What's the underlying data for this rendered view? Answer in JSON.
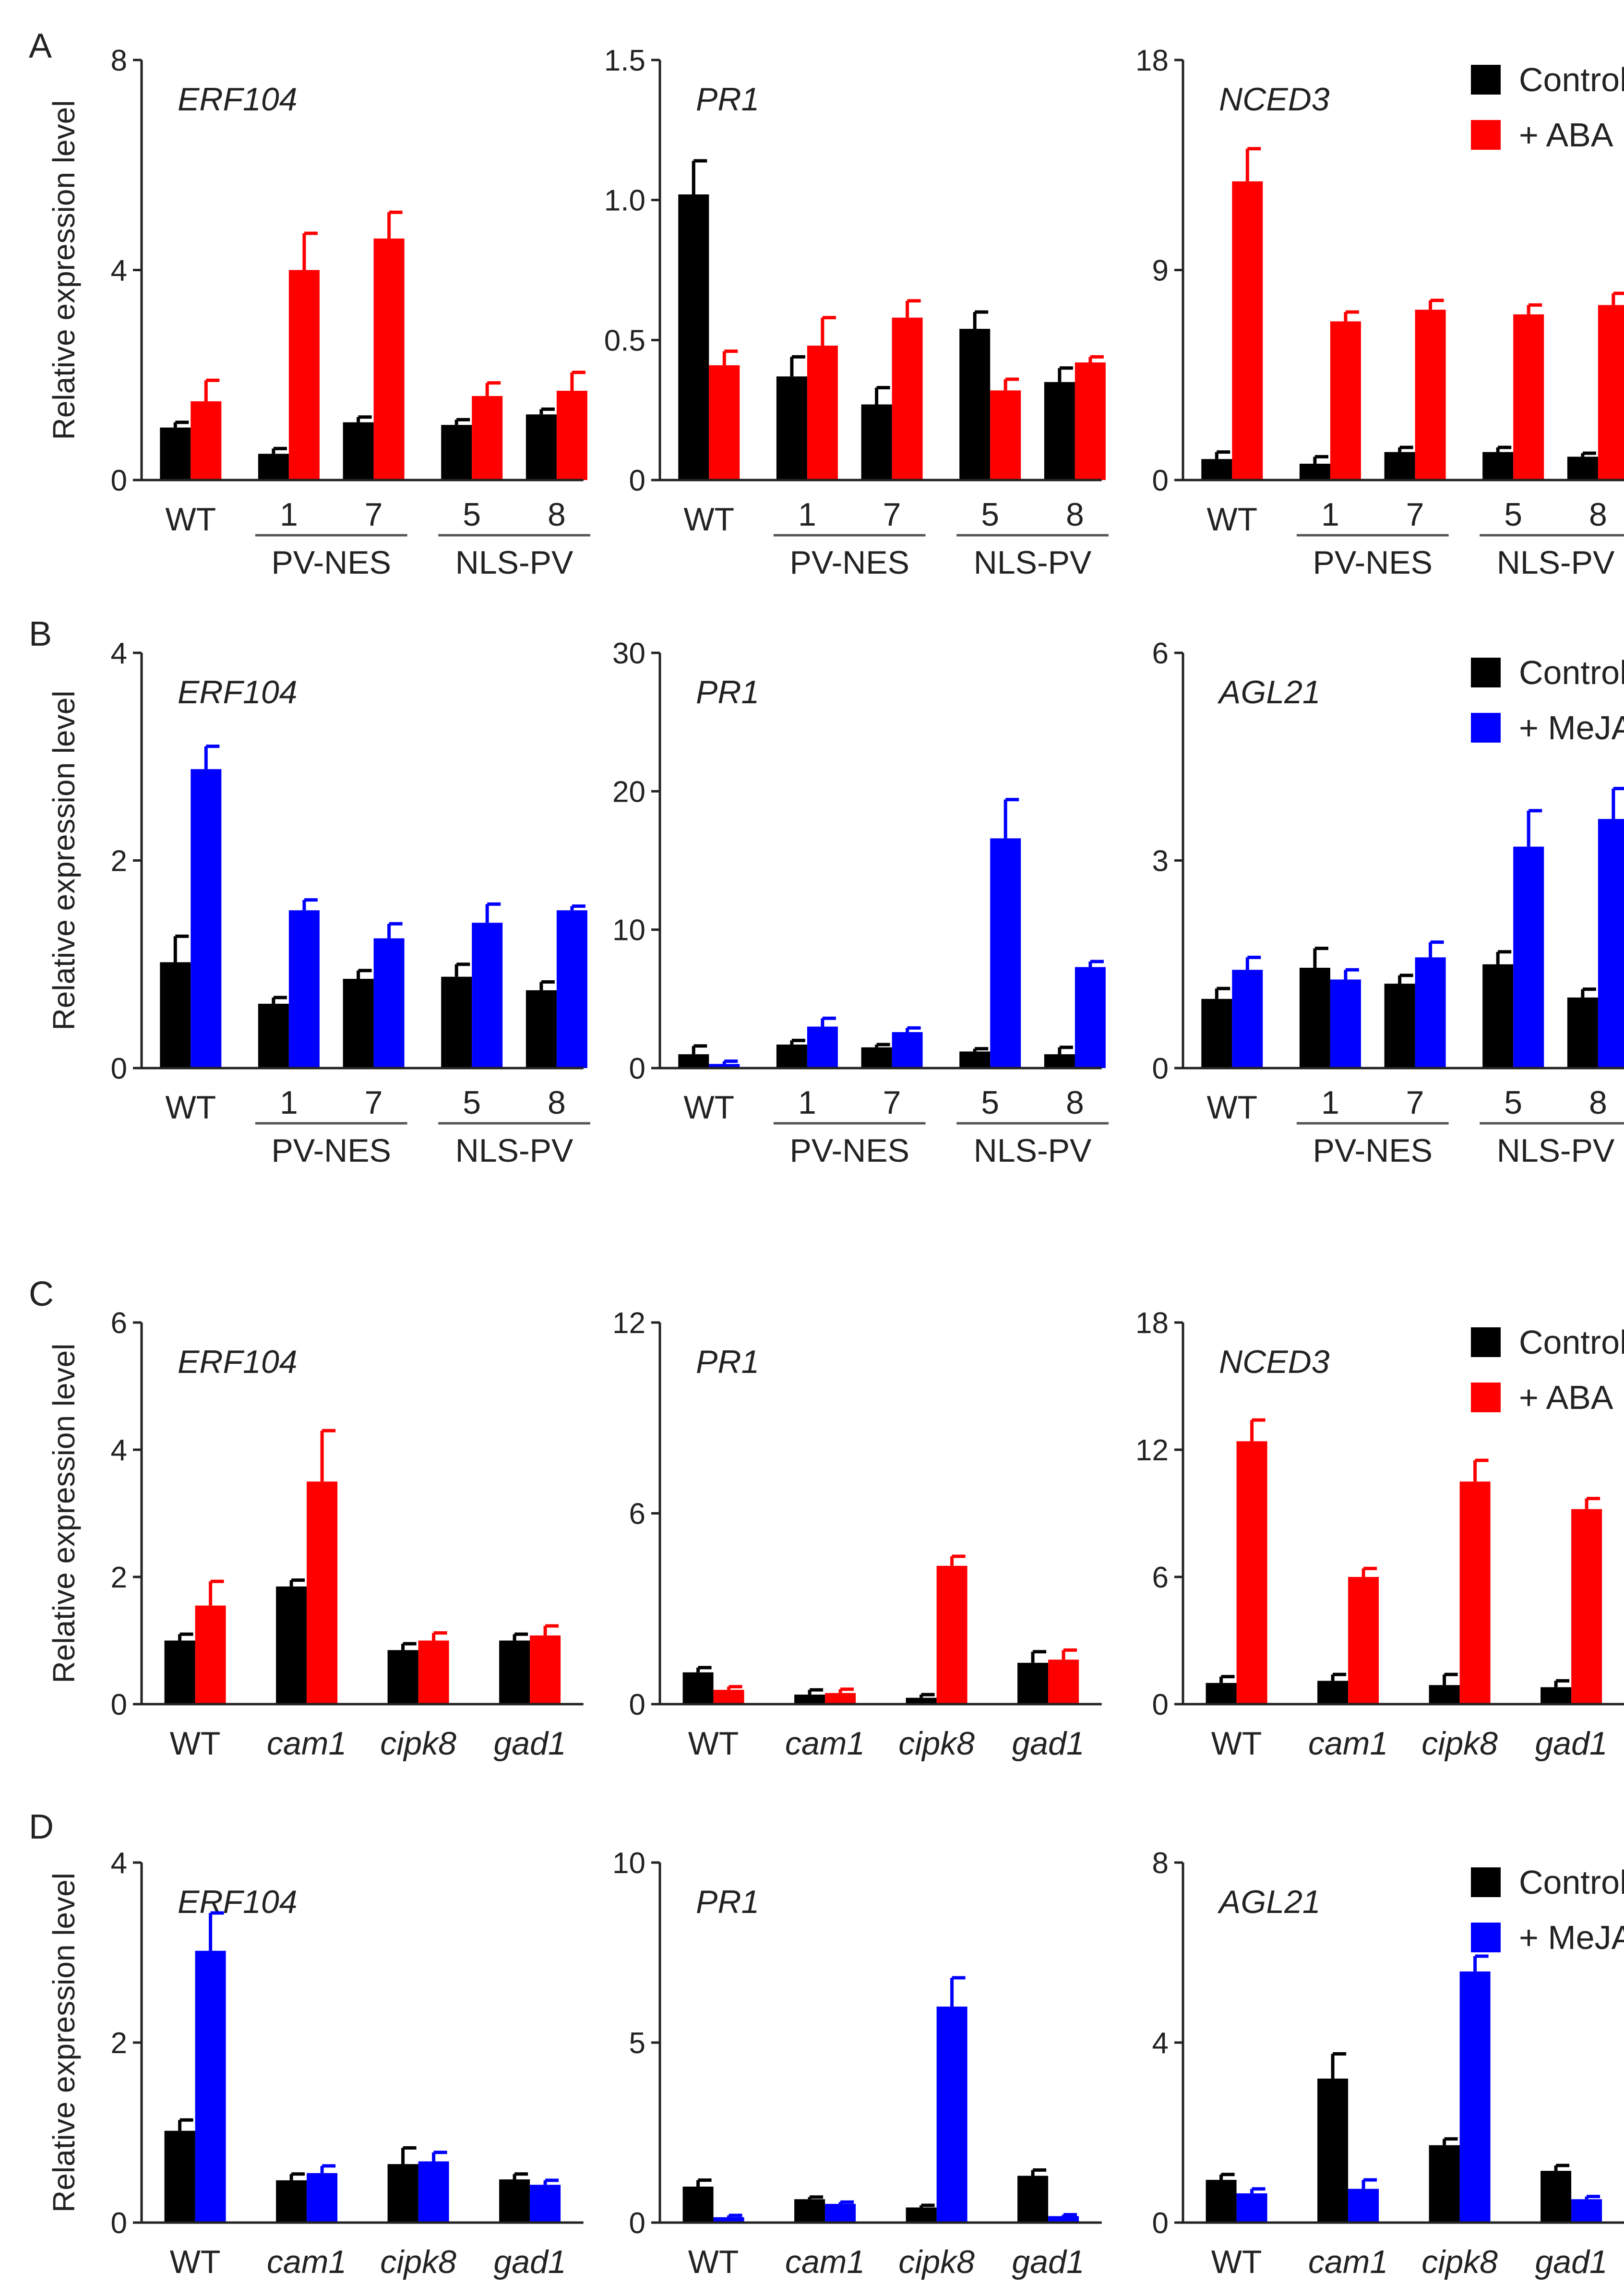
{
  "y_axis_label": "Relative expression level",
  "colors": {
    "control": "#000000",
    "aba": "#ff0000",
    "meja": "#0000ff",
    "axis": "#222222"
  },
  "chart_data": [
    {
      "panel": "A",
      "type": "bar",
      "gene": "ERF104",
      "treatment": "aba",
      "ylim": [
        0,
        8
      ],
      "yticks": [
        "0",
        "4",
        "8"
      ],
      "groups": [
        {
          "label": "WT",
          "tick": ""
        },
        {
          "label": "",
          "tick": "1"
        },
        {
          "label": "",
          "tick": "7"
        },
        {
          "label": "",
          "tick": "5"
        },
        {
          "label": "",
          "tick": "8"
        }
      ],
      "brackets": [
        "PV-NES",
        "NLS-PV"
      ],
      "series": [
        {
          "name": "Control",
          "values": [
            1.0,
            0.5,
            1.1,
            1.05,
            1.25
          ],
          "errors": [
            0.1,
            0.1,
            0.1,
            0.1,
            0.1
          ]
        },
        {
          "name": "+ ABA",
          "values": [
            1.5,
            4.0,
            4.6,
            1.6,
            1.7
          ],
          "errors": [
            0.4,
            0.7,
            0.5,
            0.25,
            0.35
          ]
        }
      ],
      "legend": null
    },
    {
      "panel": "A",
      "type": "bar",
      "gene": "PR1",
      "treatment": "aba",
      "ylim": [
        0,
        1.5
      ],
      "yticks": [
        "0",
        "0.5",
        "1.0",
        "1.5"
      ],
      "groups": [
        {
          "label": "WT",
          "tick": ""
        },
        {
          "label": "",
          "tick": "1"
        },
        {
          "label": "",
          "tick": "7"
        },
        {
          "label": "",
          "tick": "5"
        },
        {
          "label": "",
          "tick": "8"
        }
      ],
      "brackets": [
        "PV-NES",
        "NLS-PV"
      ],
      "series": [
        {
          "name": "Control",
          "values": [
            1.02,
            0.37,
            0.27,
            0.54,
            0.35
          ],
          "errors": [
            0.12,
            0.07,
            0.06,
            0.06,
            0.05
          ]
        },
        {
          "name": "+ ABA",
          "values": [
            0.41,
            0.48,
            0.58,
            0.32,
            0.42
          ],
          "errors": [
            0.05,
            0.1,
            0.06,
            0.04,
            0.02
          ]
        }
      ],
      "legend": null
    },
    {
      "panel": "A",
      "type": "bar",
      "gene": "NCED3",
      "treatment": "aba",
      "ylim": [
        0,
        18
      ],
      "yticks": [
        "0",
        "9",
        "18"
      ],
      "groups": [
        {
          "label": "WT",
          "tick": ""
        },
        {
          "label": "",
          "tick": "1"
        },
        {
          "label": "",
          "tick": "7"
        },
        {
          "label": "",
          "tick": "5"
        },
        {
          "label": "",
          "tick": "8"
        }
      ],
      "brackets": [
        "PV-NES",
        "NLS-PV"
      ],
      "series": [
        {
          "name": "Control",
          "values": [
            0.9,
            0.7,
            1.2,
            1.2,
            1.0
          ],
          "errors": [
            0.3,
            0.3,
            0.2,
            0.2,
            0.15
          ]
        },
        {
          "name": "+ ABA",
          "values": [
            12.8,
            6.8,
            7.3,
            7.1,
            7.5
          ],
          "errors": [
            1.4,
            0.4,
            0.4,
            0.4,
            0.5
          ]
        }
      ],
      "legend": [
        "Control",
        "+ ABA"
      ]
    },
    {
      "panel": "B",
      "type": "bar",
      "gene": "ERF104",
      "treatment": "meja",
      "ylim": [
        0,
        4
      ],
      "yticks": [
        "0",
        "2",
        "4"
      ],
      "groups": [
        {
          "label": "WT",
          "tick": ""
        },
        {
          "label": "",
          "tick": "1"
        },
        {
          "label": "",
          "tick": "7"
        },
        {
          "label": "",
          "tick": "5"
        },
        {
          "label": "",
          "tick": "8"
        }
      ],
      "brackets": [
        "PV-NES",
        "NLS-PV"
      ],
      "series": [
        {
          "name": "Control",
          "values": [
            1.02,
            0.62,
            0.86,
            0.88,
            0.75
          ],
          "errors": [
            0.25,
            0.06,
            0.08,
            0.12,
            0.08
          ]
        },
        {
          "name": "+ MeJA",
          "values": [
            2.88,
            1.52,
            1.25,
            1.4,
            1.52
          ],
          "errors": [
            0.22,
            0.1,
            0.14,
            0.18,
            0.04
          ]
        }
      ],
      "legend": null
    },
    {
      "panel": "B",
      "type": "bar",
      "gene": "PR1",
      "treatment": "meja",
      "ylim": [
        0,
        30
      ],
      "yticks": [
        "0",
        "10",
        "20",
        "30"
      ],
      "groups": [
        {
          "label": "WT",
          "tick": ""
        },
        {
          "label": "",
          "tick": "1"
        },
        {
          "label": "",
          "tick": "7"
        },
        {
          "label": "",
          "tick": "5"
        },
        {
          "label": "",
          "tick": "8"
        }
      ],
      "brackets": [
        "PV-NES",
        "NLS-PV"
      ],
      "series": [
        {
          "name": "Control",
          "values": [
            1.0,
            1.7,
            1.5,
            1.2,
            1.0
          ],
          "errors": [
            0.6,
            0.3,
            0.2,
            0.2,
            0.5
          ]
        },
        {
          "name": "+ MeJA",
          "values": [
            0.3,
            3.0,
            2.6,
            16.6,
            7.3
          ],
          "errors": [
            0.2,
            0.6,
            0.3,
            2.8,
            0.4
          ]
        }
      ],
      "legend": null
    },
    {
      "panel": "B",
      "type": "bar",
      "gene": "AGL21",
      "treatment": "meja",
      "ylim": [
        0,
        6
      ],
      "yticks": [
        "0",
        "3",
        "6"
      ],
      "groups": [
        {
          "label": "WT",
          "tick": ""
        },
        {
          "label": "",
          "tick": "1"
        },
        {
          "label": "",
          "tick": "7"
        },
        {
          "label": "",
          "tick": "5"
        },
        {
          "label": "",
          "tick": "8"
        }
      ],
      "brackets": [
        "PV-NES",
        "NLS-PV"
      ],
      "series": [
        {
          "name": "Control",
          "values": [
            1.0,
            1.45,
            1.22,
            1.5,
            1.02
          ],
          "errors": [
            0.15,
            0.28,
            0.12,
            0.18,
            0.12
          ]
        },
        {
          "name": "+ MeJA",
          "values": [
            1.42,
            1.28,
            1.6,
            3.2,
            3.6
          ],
          "errors": [
            0.18,
            0.14,
            0.22,
            0.52,
            0.44
          ]
        }
      ],
      "legend": [
        "Control",
        "+ MeJA"
      ]
    },
    {
      "panel": "C",
      "type": "bar",
      "gene": "ERF104",
      "treatment": "aba",
      "ylim": [
        0,
        6
      ],
      "yticks": [
        "0",
        "2",
        "4",
        "6"
      ],
      "groups": [
        {
          "label": "WT",
          "tick": ""
        },
        {
          "label": "cam1",
          "tick": ""
        },
        {
          "label": "cipk8",
          "tick": ""
        },
        {
          "label": "gad1",
          "tick": ""
        }
      ],
      "brackets": [],
      "series": [
        {
          "name": "Control",
          "values": [
            1.0,
            1.85,
            0.85,
            1.0
          ],
          "errors": [
            0.1,
            0.1,
            0.1,
            0.1
          ]
        },
        {
          "name": "+ ABA",
          "values": [
            1.55,
            3.5,
            1.0,
            1.08
          ],
          "errors": [
            0.38,
            0.8,
            0.12,
            0.15
          ]
        }
      ],
      "legend": null
    },
    {
      "panel": "C",
      "type": "bar",
      "gene": "PR1",
      "treatment": "aba",
      "ylim": [
        0,
        12
      ],
      "yticks": [
        "0",
        "6",
        "12"
      ],
      "groups": [
        {
          "label": "WT",
          "tick": ""
        },
        {
          "label": "cam1",
          "tick": ""
        },
        {
          "label": "cipk8",
          "tick": ""
        },
        {
          "label": "gad1",
          "tick": ""
        }
      ],
      "brackets": [],
      "series": [
        {
          "name": "Control",
          "values": [
            1.0,
            0.3,
            0.2,
            1.3
          ],
          "errors": [
            0.15,
            0.15,
            0.1,
            0.35
          ]
        },
        {
          "name": "+ ABA",
          "values": [
            0.45,
            0.35,
            4.35,
            1.4
          ],
          "errors": [
            0.1,
            0.12,
            0.3,
            0.3
          ]
        }
      ],
      "legend": null
    },
    {
      "panel": "C",
      "type": "bar",
      "gene": "NCED3",
      "treatment": "aba",
      "ylim": [
        0,
        18
      ],
      "yticks": [
        "0",
        "6",
        "12",
        "18"
      ],
      "groups": [
        {
          "label": "WT",
          "tick": ""
        },
        {
          "label": "cam1",
          "tick": ""
        },
        {
          "label": "cipk8",
          "tick": ""
        },
        {
          "label": "gad1",
          "tick": ""
        }
      ],
      "brackets": [],
      "series": [
        {
          "name": "Control",
          "values": [
            1.0,
            1.1,
            0.9,
            0.8
          ],
          "errors": [
            0.3,
            0.3,
            0.5,
            0.3
          ]
        },
        {
          "name": "+ ABA",
          "values": [
            12.4,
            6.0,
            10.5,
            9.2
          ],
          "errors": [
            1.0,
            0.4,
            1.0,
            0.5
          ]
        }
      ],
      "legend": [
        "Control",
        "+ ABA"
      ]
    },
    {
      "panel": "D",
      "type": "bar",
      "gene": "ERF104",
      "treatment": "meja",
      "ylim": [
        0,
        4
      ],
      "yticks": [
        "0",
        "2",
        "4"
      ],
      "groups": [
        {
          "label": "WT",
          "tick": ""
        },
        {
          "label": "cam1",
          "tick": ""
        },
        {
          "label": "cipk8",
          "tick": ""
        },
        {
          "label": "gad1",
          "tick": ""
        }
      ],
      "brackets": [],
      "series": [
        {
          "name": "Control",
          "values": [
            1.02,
            0.47,
            0.65,
            0.48
          ],
          "errors": [
            0.12,
            0.07,
            0.18,
            0.06
          ]
        },
        {
          "name": "+ MeJA",
          "values": [
            3.02,
            0.55,
            0.68,
            0.42
          ],
          "errors": [
            0.42,
            0.08,
            0.1,
            0.05
          ]
        }
      ],
      "legend": null
    },
    {
      "panel": "D",
      "type": "bar",
      "gene": "PR1",
      "treatment": "meja",
      "ylim": [
        0,
        10
      ],
      "yticks": [
        "0",
        "5",
        "10"
      ],
      "groups": [
        {
          "label": "WT",
          "tick": ""
        },
        {
          "label": "cam1",
          "tick": ""
        },
        {
          "label": "cipk8",
          "tick": ""
        },
        {
          "label": "gad1",
          "tick": ""
        }
      ],
      "brackets": [],
      "series": [
        {
          "name": "Control",
          "values": [
            1.0,
            0.65,
            0.42,
            1.3
          ],
          "errors": [
            0.18,
            0.06,
            0.06,
            0.16
          ]
        },
        {
          "name": "+ MeJA",
          "values": [
            0.15,
            0.52,
            6.0,
            0.18
          ],
          "errors": [
            0.05,
            0.05,
            0.8,
            0.04
          ]
        }
      ],
      "legend": null
    },
    {
      "panel": "D",
      "type": "bar",
      "gene": "AGL21",
      "treatment": "meja",
      "ylim": [
        0,
        8
      ],
      "yticks": [
        "0",
        "4",
        "8"
      ],
      "groups": [
        {
          "label": "WT",
          "tick": ""
        },
        {
          "label": "cam1",
          "tick": ""
        },
        {
          "label": "cipk8",
          "tick": ""
        },
        {
          "label": "gad1",
          "tick": ""
        }
      ],
      "brackets": [],
      "series": [
        {
          "name": "Control",
          "values": [
            0.95,
            3.2,
            1.72,
            1.15
          ],
          "errors": [
            0.12,
            0.55,
            0.14,
            0.12
          ]
        },
        {
          "name": "+ MeJA",
          "values": [
            0.65,
            0.75,
            5.58,
            0.52
          ],
          "errors": [
            0.1,
            0.2,
            0.34,
            0.06
          ]
        }
      ],
      "legend": [
        "Control",
        "+ MeJA"
      ]
    }
  ]
}
